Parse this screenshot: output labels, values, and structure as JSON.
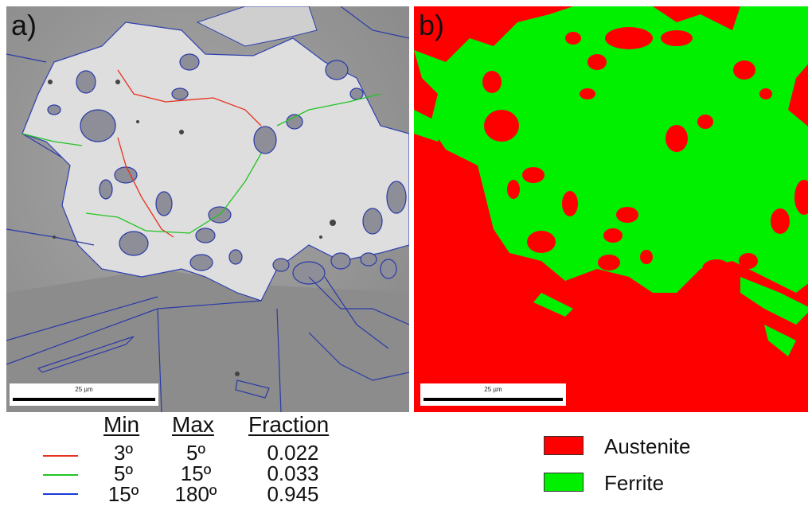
{
  "panel_a": {
    "label": "a)",
    "scale_bar": "25 µm",
    "description_icon": "ebsd-grain-boundary-map"
  },
  "panel_b": {
    "label": "b)",
    "scale_bar": "25 µm",
    "description_icon": "ebsd-phase-map"
  },
  "boundary_legend": {
    "headers": {
      "min": "Min",
      "max": "Max",
      "fraction": "Fraction"
    },
    "rows": [
      {
        "color": "#e8321e",
        "min": "3º",
        "max": "5º",
        "fraction": "0.022"
      },
      {
        "color": "#22c422",
        "min": "5º",
        "max": "15º",
        "fraction": "0.033"
      },
      {
        "color": "#1a3ad8",
        "min": "15º",
        "max": "180º",
        "fraction": "0.945"
      }
    ]
  },
  "phase_legend": [
    {
      "label": "Austenite",
      "color": "#ff0000"
    },
    {
      "label": "Ferrite",
      "color": "#00f000"
    }
  ]
}
